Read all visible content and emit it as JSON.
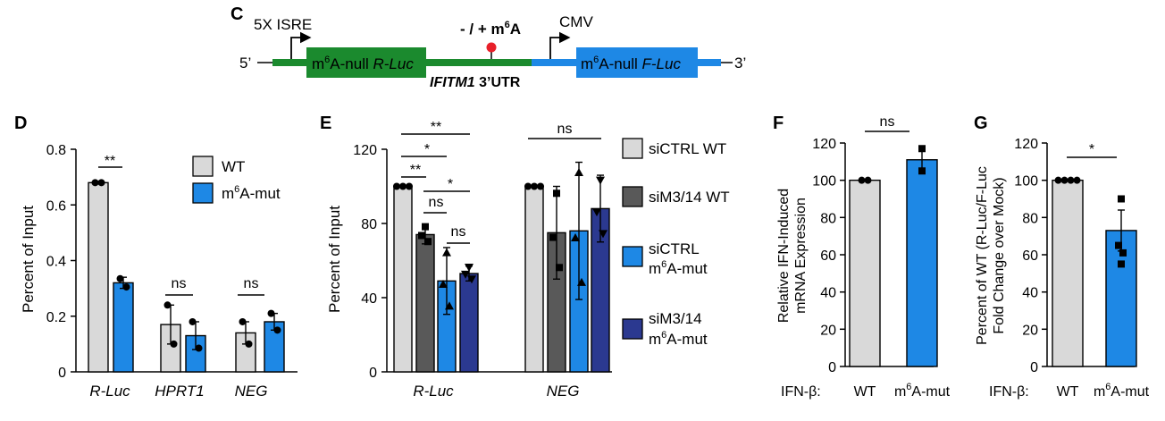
{
  "panel_letters": {
    "c": "C",
    "d": "D",
    "e": "E",
    "f": "F",
    "g": "G"
  },
  "construct": {
    "five_prime": "5’",
    "three_prime": "3’",
    "isre": "5X ISRE",
    "cmv": "CMV",
    "m6a_toggle": "- / + m",
    "m6a_toggle_sup": "6",
    "m6a_toggle_tail": "A",
    "rluc_pre": "m",
    "rluc_sup": "6",
    "rluc_mid": "A-null ",
    "rluc_gene": "R-Luc",
    "fluc_pre": "m",
    "fluc_sup": "6",
    "fluc_mid": "A-null ",
    "fluc_gene": "F-Luc",
    "utr_gene": "IFITM1",
    "utr_tail": " 3’UTR",
    "colors": {
      "green": "#1b8a2e",
      "blue": "#1e88e5",
      "red": "#e8202a"
    }
  },
  "legend_d": {
    "wt": "WT",
    "mut_pre": "m",
    "mut_sup": "6",
    "mut_tail": "A-mut"
  },
  "legend_e": {
    "s1": "siCTRL WT",
    "s2": "siM3/14 WT",
    "s3_l1": "siCTRL",
    "s3_l2_pre": "m",
    "s3_l2_sup": "6",
    "s3_l2_tail": "A-mut",
    "s4_l1": "siM3/14",
    "s4_l2_pre": "m",
    "s4_l2_sup": "6",
    "s4_l2_tail": "A-mut"
  },
  "xcat_fg": {
    "ifn": "IFN-β:",
    "wt": "WT",
    "mut_pre": "m",
    "mut_sup": "6",
    "mut_tail": "A-mut"
  },
  "chart_data": [
    {
      "panel": "D",
      "type": "bar",
      "categories": [
        "R-Luc",
        "HPRT1",
        "NEG"
      ],
      "ylabel": "Percent of Input",
      "ylim": [
        0,
        0.8
      ],
      "yticks": [
        "0",
        "0.2",
        "0.4",
        "0.6",
        "0.8"
      ],
      "series": [
        {
          "name": "WT",
          "color": "#d9d9d9",
          "values": [
            0.68,
            0.17,
            0.14
          ],
          "errors": [
            0.005,
            0.07,
            0.04
          ],
          "points": [
            [
              0.68,
              0.68
            ],
            [
              0.24,
              0.1
            ],
            [
              0.18,
              0.1
            ]
          ]
        },
        {
          "name": "m6A-mut",
          "color": "#1e88e5",
          "values": [
            0.32,
            0.13,
            0.18
          ],
          "errors": [
            0.02,
            0.05,
            0.03
          ],
          "points": [
            [
              0.335,
              0.305
            ],
            [
              0.18,
              0.085
            ],
            [
              0.21,
              0.15
            ]
          ]
        }
      ],
      "significance": [
        "**",
        "ns",
        "ns"
      ]
    },
    {
      "panel": "E",
      "type": "bar",
      "categories": [
        "R-Luc",
        "NEG"
      ],
      "ylabel": "Percent of Input",
      "ylim": [
        0,
        120
      ],
      "yticks": [
        "0",
        "40",
        "80",
        "120"
      ],
      "series": [
        {
          "name": "siCTRL WT",
          "color": "#d9d9d9",
          "values": [
            100,
            100
          ],
          "errors": [
            0,
            0
          ]
        },
        {
          "name": "siM3/14 WT",
          "color": "#595959",
          "values": [
            74,
            75
          ],
          "errors": [
            5,
            25
          ]
        },
        {
          "name": "siCTRL m6A-mut",
          "color": "#1e88e5",
          "values": [
            49,
            76
          ],
          "errors": [
            18,
            37
          ]
        },
        {
          "name": "siM3/14 m6A-mut",
          "color": "#2b3990",
          "values": [
            53,
            88
          ],
          "errors": [
            4,
            18
          ]
        }
      ],
      "significance": [
        "**",
        "*",
        "**",
        "ns",
        "*",
        "ns",
        "ns"
      ]
    },
    {
      "panel": "F",
      "type": "bar",
      "categories": [
        "WT",
        "m6A-mut"
      ],
      "ylabel": "Relative IFN-Induced mRNA Expression",
      "ylim": [
        0,
        120
      ],
      "yticks": [
        "0",
        "20",
        "40",
        "60",
        "80",
        "100",
        "120"
      ],
      "values": [
        100,
        111
      ],
      "errors": [
        0.5,
        7
      ],
      "colors": [
        "#d9d9d9",
        "#1e88e5"
      ],
      "significance": [
        "ns"
      ]
    },
    {
      "panel": "G",
      "type": "bar",
      "categories": [
        "WT",
        "m6A-mut"
      ],
      "ylabel": "Percent of WT (R-Luc/F-Luc Fold Change over Mock)",
      "ylim": [
        0,
        120
      ],
      "yticks": [
        "0",
        "20",
        "40",
        "60",
        "80",
        "100",
        "120"
      ],
      "values": [
        100,
        73
      ],
      "errors": [
        0.5,
        11
      ],
      "colors": [
        "#d9d9d9",
        "#1e88e5"
      ],
      "significance": [
        "*"
      ]
    }
  ],
  "labels": {
    "d_ylabel": "Percent of Input",
    "e_ylabel": "Percent of Input",
    "f_ylabel_1": "Relative IFN-Induced",
    "f_ylabel_2": "mRNA Expression",
    "g_ylabel_1": "Percent of WT (R-Luc/F-Luc",
    "g_ylabel_2": "Fold Change over Mock)",
    "d_cat_1": "R-Luc",
    "d_cat_2": "HPRT1",
    "d_cat_3": "NEG",
    "e_cat_1": "R-Luc",
    "e_cat_2": "NEG",
    "d_ticks": [
      "0",
      "0.2",
      "0.4",
      "0.6",
      "0.8"
    ],
    "e_ticks": [
      "0",
      "40",
      "80",
      "120"
    ],
    "fg_ticks": [
      "0",
      "20",
      "40",
      "60",
      "80",
      "100",
      "120"
    ],
    "sig_dstar": "**",
    "sig_star": "*",
    "sig_ns": "ns"
  }
}
